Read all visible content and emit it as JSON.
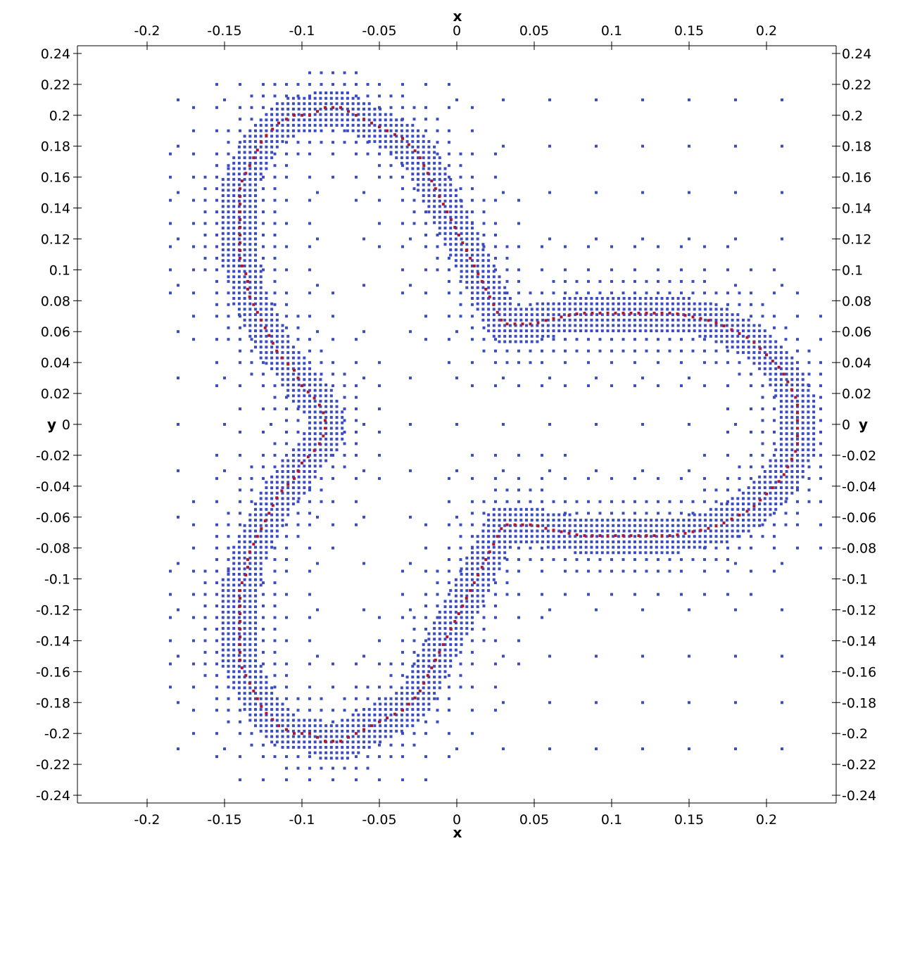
{
  "chart_data": {
    "type": "scatter",
    "title": "",
    "xlabel": "x",
    "ylabel": "y",
    "xlim": [
      -0.245,
      0.245
    ],
    "ylim": [
      -0.245,
      0.245
    ],
    "grid": false,
    "legend": "none",
    "x_ticks": [
      "-0.2",
      "-0.15",
      "-0.1",
      "-0.05",
      "0",
      "0.05",
      "0.1",
      "0.15",
      "0.2"
    ],
    "y_ticks": [
      "0.24",
      "0.22",
      "0.2",
      "0.18",
      "0.16",
      "0.14",
      "0.12",
      "0.1",
      "0.08",
      "0.06",
      "0.04",
      "0.02",
      "0",
      "-0.02",
      "-0.04",
      "-0.06",
      "-0.08",
      "-0.1",
      "-0.12",
      "-0.14",
      "-0.16",
      "-0.18",
      "-0.2",
      "-0.22",
      "-0.24"
    ],
    "colors": {
      "interface": "#b2182b",
      "mesh": "#3b4cc0",
      "axis": "#000000"
    },
    "series": [
      {
        "role": "interface",
        "description_values": "closed curve of interface cells",
        "points": [
          [
            -0.085,
            0.205
          ],
          [
            -0.075,
            0.205
          ],
          [
            -0.065,
            0.2
          ],
          [
            -0.055,
            0.195
          ],
          [
            -0.045,
            0.19
          ],
          [
            -0.035,
            0.185
          ],
          [
            -0.025,
            0.175
          ],
          [
            -0.02,
            0.165
          ],
          [
            -0.015,
            0.155
          ],
          [
            -0.01,
            0.145
          ],
          [
            -0.005,
            0.135
          ],
          [
            0.0,
            0.125
          ],
          [
            0.005,
            0.115
          ],
          [
            0.01,
            0.105
          ],
          [
            0.015,
            0.095
          ],
          [
            0.02,
            0.085
          ],
          [
            0.025,
            0.075
          ],
          [
            0.03,
            0.065
          ],
          [
            0.04,
            0.065
          ],
          [
            0.05,
            0.065
          ],
          [
            0.06,
            0.068
          ],
          [
            0.07,
            0.07
          ],
          [
            0.08,
            0.072
          ],
          [
            0.09,
            0.072
          ],
          [
            0.1,
            0.072
          ],
          [
            0.11,
            0.072
          ],
          [
            0.12,
            0.072
          ],
          [
            0.13,
            0.072
          ],
          [
            0.14,
            0.072
          ],
          [
            0.15,
            0.07
          ],
          [
            0.16,
            0.068
          ],
          [
            0.17,
            0.065
          ],
          [
            0.18,
            0.06
          ],
          [
            0.19,
            0.055
          ],
          [
            0.2,
            0.045
          ],
          [
            0.21,
            0.035
          ],
          [
            0.215,
            0.025
          ],
          [
            0.22,
            0.015
          ],
          [
            0.22,
            0.005
          ],
          [
            0.22,
            -0.005
          ],
          [
            0.22,
            -0.015
          ],
          [
            0.215,
            -0.025
          ],
          [
            0.21,
            -0.035
          ],
          [
            0.2,
            -0.045
          ],
          [
            0.19,
            -0.055
          ],
          [
            0.18,
            -0.06
          ],
          [
            0.17,
            -0.065
          ],
          [
            0.16,
            -0.068
          ],
          [
            0.15,
            -0.07
          ],
          [
            0.14,
            -0.072
          ],
          [
            0.13,
            -0.072
          ],
          [
            0.12,
            -0.072
          ],
          [
            0.11,
            -0.072
          ],
          [
            0.1,
            -0.072
          ],
          [
            0.09,
            -0.072
          ],
          [
            0.08,
            -0.072
          ],
          [
            0.07,
            -0.07
          ],
          [
            0.06,
            -0.068
          ],
          [
            0.05,
            -0.065
          ],
          [
            0.04,
            -0.065
          ],
          [
            0.03,
            -0.065
          ],
          [
            0.025,
            -0.075
          ],
          [
            0.02,
            -0.085
          ],
          [
            0.015,
            -0.095
          ],
          [
            0.01,
            -0.105
          ],
          [
            0.005,
            -0.115
          ],
          [
            0.0,
            -0.125
          ],
          [
            -0.005,
            -0.135
          ],
          [
            -0.01,
            -0.145
          ],
          [
            -0.015,
            -0.155
          ],
          [
            -0.02,
            -0.165
          ],
          [
            -0.025,
            -0.175
          ],
          [
            -0.035,
            -0.185
          ],
          [
            -0.045,
            -0.19
          ],
          [
            -0.055,
            -0.195
          ],
          [
            -0.065,
            -0.2
          ],
          [
            -0.075,
            -0.205
          ],
          [
            -0.085,
            -0.205
          ],
          [
            -0.095,
            -0.2
          ],
          [
            -0.105,
            -0.2
          ],
          [
            -0.115,
            -0.195
          ],
          [
            -0.125,
            -0.185
          ],
          [
            -0.13,
            -0.175
          ],
          [
            -0.135,
            -0.165
          ],
          [
            -0.14,
            -0.155
          ],
          [
            -0.14,
            -0.145
          ],
          [
            -0.14,
            -0.135
          ],
          [
            -0.14,
            -0.125
          ],
          [
            -0.14,
            -0.115
          ],
          [
            -0.14,
            -0.105
          ],
          [
            -0.135,
            -0.095
          ],
          [
            -0.135,
            -0.085
          ],
          [
            -0.13,
            -0.075
          ],
          [
            -0.125,
            -0.065
          ],
          [
            -0.12,
            -0.055
          ],
          [
            -0.115,
            -0.045
          ],
          [
            -0.105,
            -0.035
          ],
          [
            -0.1,
            -0.025
          ],
          [
            -0.09,
            -0.015
          ],
          [
            -0.085,
            -0.005
          ],
          [
            -0.085,
            0.005
          ],
          [
            -0.09,
            0.015
          ],
          [
            -0.1,
            0.025
          ],
          [
            -0.105,
            0.035
          ],
          [
            -0.115,
            0.045
          ],
          [
            -0.12,
            0.055
          ],
          [
            -0.125,
            0.065
          ],
          [
            -0.13,
            0.075
          ],
          [
            -0.135,
            0.085
          ],
          [
            -0.135,
            0.095
          ],
          [
            -0.14,
            0.105
          ],
          [
            -0.14,
            0.115
          ],
          [
            -0.14,
            0.125
          ],
          [
            -0.14,
            0.135
          ],
          [
            -0.14,
            0.145
          ],
          [
            -0.14,
            0.155
          ],
          [
            -0.135,
            0.165
          ],
          [
            -0.13,
            0.175
          ],
          [
            -0.125,
            0.185
          ],
          [
            -0.115,
            0.195
          ],
          [
            -0.105,
            0.2
          ],
          [
            -0.095,
            0.2
          ]
        ]
      },
      {
        "role": "mesh",
        "description_values": "coarse background grid cell centers",
        "spacing": 0.03,
        "x_start": -0.18,
        "x_end": 0.225,
        "y_start": -0.21,
        "y_end": 0.21
      }
    ]
  }
}
